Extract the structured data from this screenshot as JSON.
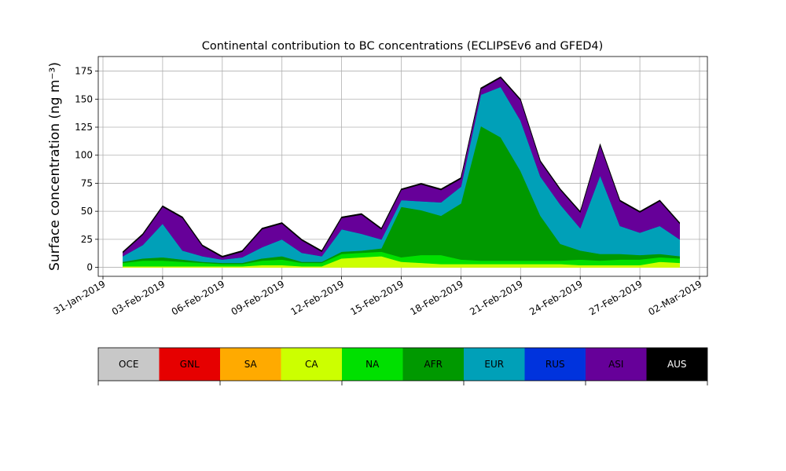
{
  "chart_data": {
    "type": "stacked_area",
    "title": "Continental contribution to BC concentrations (ECLIPSEv6 and GFED4)",
    "ylabel": "Surface concentration (ng m⁻³)",
    "x": [
      "2019-02-01",
      "2019-02-02",
      "2019-02-03",
      "2019-02-04",
      "2019-02-05",
      "2019-02-06",
      "2019-02-07",
      "2019-02-08",
      "2019-02-09",
      "2019-02-10",
      "2019-02-11",
      "2019-02-12",
      "2019-02-13",
      "2019-02-14",
      "2019-02-15",
      "2019-02-16",
      "2019-02-17",
      "2019-02-18",
      "2019-02-19",
      "2019-02-20",
      "2019-02-21",
      "2019-02-22",
      "2019-02-23",
      "2019-02-24",
      "2019-02-25",
      "2019-02-26",
      "2019-02-27",
      "2019-02-28",
      "2019-03-01"
    ],
    "series": [
      {
        "name": "OCE",
        "color": "#c8c8c8",
        "values": [
          0,
          0,
          0,
          0,
          0,
          0,
          0,
          0,
          0,
          0,
          0,
          0,
          0,
          0,
          0,
          0,
          0,
          0,
          0,
          0,
          0,
          0,
          0,
          0,
          0,
          0,
          0,
          0,
          0
        ]
      },
      {
        "name": "GNL",
        "color": "#e60000",
        "values": [
          0,
          0,
          0,
          0,
          0,
          0,
          0,
          0,
          0,
          0,
          0,
          0,
          0,
          0,
          0,
          0,
          0,
          0,
          0,
          0,
          0,
          0,
          0,
          0,
          0,
          0,
          0,
          0,
          0
        ]
      },
      {
        "name": "SA",
        "color": "#ffaa00",
        "values": [
          0,
          0,
          0,
          0,
          0,
          0,
          0,
          0,
          0,
          0,
          0,
          0,
          0,
          0,
          0,
          0,
          0,
          0,
          0,
          0,
          0,
          0,
          0,
          0,
          0,
          0,
          0,
          0,
          0
        ]
      },
      {
        "name": "CA",
        "color": "#ccff00",
        "values": [
          1,
          1,
          1,
          1,
          1,
          1,
          1,
          2,
          2,
          1,
          1,
          8,
          9,
          10,
          5,
          4,
          3,
          3,
          3,
          3,
          3,
          3,
          3,
          2,
          2,
          2,
          2,
          5,
          4
        ]
      },
      {
        "name": "NA",
        "color": "#00e000",
        "values": [
          3,
          5,
          5,
          4,
          3,
          2,
          2,
          4,
          5,
          3,
          3,
          4,
          4,
          4,
          4,
          7,
          8,
          4,
          3,
          3,
          3,
          3,
          3,
          5,
          4,
          5,
          5,
          4,
          4
        ]
      },
      {
        "name": "AFR",
        "color": "#009900",
        "values": [
          1,
          2,
          3,
          2,
          1,
          1,
          1,
          2,
          3,
          1,
          1,
          2,
          2,
          3,
          45,
          40,
          35,
          50,
          120,
          110,
          80,
          40,
          15,
          8,
          6,
          5,
          4,
          3,
          2
        ]
      },
      {
        "name": "EUR",
        "color": "#00a0b8",
        "values": [
          5,
          12,
          30,
          8,
          5,
          3,
          5,
          10,
          15,
          8,
          5,
          20,
          15,
          8,
          6,
          8,
          12,
          15,
          28,
          45,
          45,
          35,
          35,
          20,
          70,
          25,
          20,
          25,
          15
        ]
      },
      {
        "name": "RUS",
        "color": "#0033dd",
        "values": [
          0,
          0,
          0,
          0,
          0,
          0,
          0,
          0,
          0,
          0,
          0,
          0,
          0,
          0,
          0,
          0,
          0,
          0,
          0,
          0,
          0,
          0,
          0,
          0,
          0,
          0,
          0,
          0,
          0
        ]
      },
      {
        "name": "ASI",
        "color": "#660099",
        "values": [
          3,
          9,
          15,
          29,
          9,
          2,
          5,
          16,
          14,
          11,
          4,
          10,
          17,
          9,
          9,
          15,
          11,
          7,
          5,
          8,
          18,
          13,
          13,
          14,
          27,
          22,
          18,
          22,
          14
        ]
      },
      {
        "name": "AUS",
        "color": "#000000",
        "values": [
          1,
          1,
          1,
          1,
          1,
          1,
          1,
          1,
          1,
          1,
          1,
          1,
          1,
          1,
          1,
          1,
          1,
          1,
          1,
          1,
          1,
          1,
          1,
          1,
          1,
          1,
          1,
          1,
          1
        ]
      }
    ],
    "xlim": [
      "2019-01-31",
      "2019-03-02"
    ],
    "xticks": [
      {
        "value": "2019-01-31",
        "label": "31-Jan-2019"
      },
      {
        "value": "2019-02-03",
        "label": "03-Feb-2019"
      },
      {
        "value": "2019-02-06",
        "label": "06-Feb-2019"
      },
      {
        "value": "2019-02-09",
        "label": "09-Feb-2019"
      },
      {
        "value": "2019-02-12",
        "label": "12-Feb-2019"
      },
      {
        "value": "2019-02-15",
        "label": "15-Feb-2019"
      },
      {
        "value": "2019-02-18",
        "label": "18-Feb-2019"
      },
      {
        "value": "2019-02-21",
        "label": "21-Feb-2019"
      },
      {
        "value": "2019-02-24",
        "label": "24-Feb-2019"
      },
      {
        "value": "2019-02-27",
        "label": "27-Feb-2019"
      },
      {
        "value": "2019-03-02",
        "label": "02-Mar-2019"
      }
    ],
    "ylim": [
      -8,
      188
    ],
    "yticks": [
      0,
      25,
      50,
      75,
      100,
      125,
      150,
      175
    ],
    "grid": true
  }
}
